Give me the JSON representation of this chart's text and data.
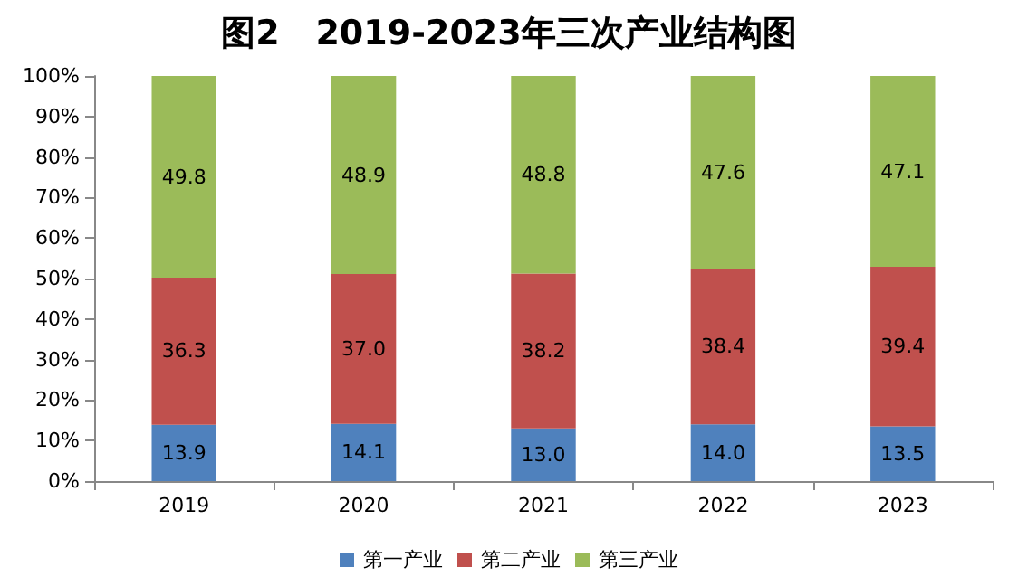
{
  "chart_data": {
    "type": "bar",
    "title": "图2   2019-2023年三次产业结构图",
    "categories": [
      "2019",
      "2020",
      "2021",
      "2022",
      "2023"
    ],
    "series": [
      {
        "name": "第一产业",
        "color": "#4f81bd",
        "values": [
          13.9,
          14.1,
          13.0,
          14.0,
          13.5
        ],
        "value_labels": [
          "13.9",
          "14.1",
          "13.0",
          "14.0",
          "13.5"
        ]
      },
      {
        "name": "第二产业",
        "color": "#c0504d",
        "values": [
          36.3,
          37.0,
          38.2,
          38.4,
          39.4
        ],
        "value_labels": [
          "36.3",
          "37.0",
          "38.2",
          "38.4",
          "39.4"
        ]
      },
      {
        "name": "第三产业",
        "color": "#9bbb59",
        "values": [
          49.8,
          48.9,
          48.8,
          47.6,
          47.1
        ],
        "value_labels": [
          "49.8",
          "48.9",
          "48.8",
          "47.6",
          "47.1"
        ]
      }
    ],
    "stacked": true,
    "ylim": [
      0,
      100
    ],
    "yticks": [
      {
        "value": 0,
        "label": "0%"
      },
      {
        "value": 10,
        "label": "10%"
      },
      {
        "value": 20,
        "label": "20%"
      },
      {
        "value": 30,
        "label": "30%"
      },
      {
        "value": 40,
        "label": "40%"
      },
      {
        "value": 50,
        "label": "50%"
      },
      {
        "value": 60,
        "label": "60%"
      },
      {
        "value": 70,
        "label": "70%"
      },
      {
        "value": 80,
        "label": "80%"
      },
      {
        "value": 90,
        "label": "90%"
      },
      {
        "value": 100,
        "label": "100%"
      }
    ],
    "grid": false,
    "legend": "bottom"
  }
}
